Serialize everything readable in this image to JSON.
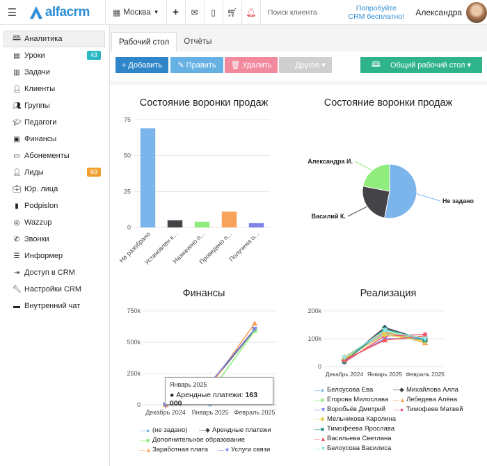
{
  "header": {
    "logo_text": "alfacrm",
    "city": "Москва",
    "search_placeholder": "Поиск клиента",
    "promo_line1": "Попробуйте",
    "promo_line2": "CRM бесплатно!",
    "user_name": "Александра",
    "icons": [
      "hamburger-icon",
      "building-icon",
      "plus-icon",
      "mail-icon",
      "phone-icon",
      "cart-icon",
      "bell-icon"
    ]
  },
  "sidebar": {
    "items": [
      {
        "label": "Аналитика",
        "icon": "dashboard-icon",
        "active": true
      },
      {
        "label": "Уроки",
        "icon": "calendar-icon",
        "badge": "43",
        "badge_color": "#2bb7c4"
      },
      {
        "label": "Задачи",
        "icon": "tasks-icon"
      },
      {
        "label": "Клиенты",
        "icon": "user-icon"
      },
      {
        "label": "Группы",
        "icon": "group-icon"
      },
      {
        "label": "Педагоги",
        "icon": "graduation-cap-icon"
      },
      {
        "label": "Финансы",
        "icon": "money-icon"
      },
      {
        "label": "Абонементы",
        "icon": "ticket-icon"
      },
      {
        "label": "Лиды",
        "icon": "user-plus-icon",
        "badge": "69",
        "badge_color": "#f0a030"
      },
      {
        "label": "Юр. лица",
        "icon": "briefcase-icon"
      },
      {
        "label": "Podpislon",
        "icon": "document-icon"
      },
      {
        "label": "Wazzup",
        "icon": "whatsapp-icon"
      },
      {
        "label": "Звонки",
        "icon": "phone-icon"
      },
      {
        "label": "Информер",
        "icon": "list-icon"
      },
      {
        "label": "Доступ в CRM",
        "icon": "login-icon"
      },
      {
        "label": "Настройки CRM",
        "icon": "wrench-icon"
      },
      {
        "label": "Внутренний чат",
        "icon": "chat-icon"
      }
    ]
  },
  "tabs": [
    {
      "label": "Рабочий стол",
      "active": true
    },
    {
      "label": "Отчёты",
      "active": false
    }
  ],
  "toolbar": {
    "add_label": "+ Добавить",
    "edit_label": "✎ Править",
    "delete_label": "🗑 Удалить",
    "other_label": "··· Другое ▾",
    "desk_label": "Общий рабочий стол ▾"
  },
  "colors": {
    "accent": "#2e86c9",
    "edit": "#66b1e3",
    "delete": "#f28a9e",
    "other": "#cfcfcf",
    "desk": "#2fb38b"
  },
  "chart_data": [
    {
      "type": "bar",
      "title": "Состояние воронки продаж",
      "categories": [
        "Не разобрано",
        "Установлен к...",
        "Назначено п...",
        "Проведено п...",
        "Получена о..."
      ],
      "values": [
        69,
        5,
        4,
        11,
        3
      ],
      "colors": [
        "#7cb5ec",
        "#434348",
        "#90ed7d",
        "#f7a35c",
        "#8085e9"
      ],
      "yticks": [
        "0",
        "25",
        "50",
        "75"
      ],
      "ylim": [
        0,
        75
      ],
      "legend": "none"
    },
    {
      "type": "pie",
      "title": "Состояние воронки продаж",
      "slices": [
        {
          "label": "Не задано",
          "value": 53,
          "color": "#7cb5ec"
        },
        {
          "label": "Василий К.",
          "value": 25,
          "color": "#434348"
        },
        {
          "label": "Александра И.",
          "value": 22,
          "color": "#90ed7d"
        }
      ]
    },
    {
      "type": "line",
      "title": "Финансы",
      "categories": [
        "Декабрь 2024",
        "Январь 2025",
        "Февраль 2025"
      ],
      "yticks": [
        "0",
        "250k",
        "500k",
        "750k"
      ],
      "ylim": [
        0,
        750000
      ],
      "series": [
        {
          "name": "(не задано)",
          "values": [
            0,
            5000,
            15000
          ],
          "color": "#7cb5ec",
          "marker": "●"
        },
        {
          "name": "Арендные платежи",
          "values": [
            0,
            163000,
            600000
          ],
          "color": "#434348",
          "marker": "◆"
        },
        {
          "name": "Дополнительное образование",
          "values": [
            0,
            100000,
            590000
          ],
          "color": "#90ed7d",
          "marker": "■"
        },
        {
          "name": "Заработная плата",
          "values": [
            0,
            150000,
            650000
          ],
          "color": "#f7a35c",
          "marker": "▲"
        },
        {
          "name": "Услуги связи",
          "values": [
            0,
            175000,
            605000
          ],
          "color": "#8085e9",
          "marker": "▼"
        }
      ],
      "tooltip": {
        "title": "Январь 2025",
        "series": "Арендные платежи:",
        "value": "163 000"
      }
    },
    {
      "type": "line",
      "title": "Реализация",
      "categories": [
        "Декабрь 2024",
        "Январь 2025",
        "Февраль 2025"
      ],
      "yticks": [
        "0",
        "100k",
        "200k"
      ],
      "ylim": [
        0,
        200000
      ],
      "series": [
        {
          "name": "Белоусова Ева",
          "values": [
            25000,
            120000,
            95000
          ],
          "color": "#7cb5ec",
          "marker": "●"
        },
        {
          "name": "Михайлова Алла",
          "values": [
            22000,
            140000,
            95000
          ],
          "color": "#434348",
          "marker": "◆"
        },
        {
          "name": "Егорова Милослава",
          "values": [
            30000,
            130000,
            90000
          ],
          "color": "#90ed7d",
          "marker": "■"
        },
        {
          "name": "Лебедева Алёна",
          "values": [
            35000,
            125000,
            85000
          ],
          "color": "#f7a35c",
          "marker": "▲"
        },
        {
          "name": "Воробьёв Дмитрий",
          "values": [
            20000,
            100000,
            100000
          ],
          "color": "#8085e9",
          "marker": "▼"
        },
        {
          "name": "Тимофеев Матвей",
          "values": [
            15000,
            110000,
            115000
          ],
          "color": "#f15c80",
          "marker": "●"
        },
        {
          "name": "Мельникова Каролина",
          "values": [
            28000,
            115000,
            90000
          ],
          "color": "#e4d354",
          "marker": "◆"
        },
        {
          "name": "Тимофеева Ярослава",
          "values": [
            18000,
            135000,
            95000
          ],
          "color": "#2b908f",
          "marker": "■"
        },
        {
          "name": "Васильева Светлана",
          "values": [
            24000,
            95000,
            110000
          ],
          "color": "#f45b5b",
          "marker": "▲"
        },
        {
          "name": "Белоусова Василиса",
          "values": [
            32000,
            130000,
            100000
          ],
          "color": "#91e8e1",
          "marker": "▼"
        }
      ]
    }
  ]
}
